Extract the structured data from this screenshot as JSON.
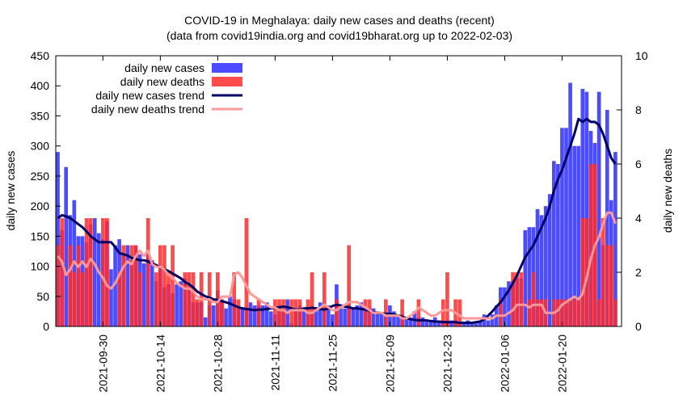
{
  "chart_data": {
    "type": "bar",
    "title": "COVID-19 in Meghalaya: daily new cases and deaths (recent)",
    "subtitle": "(data from covid19india.org and covid19bharat.org up to 2022-02-03)",
    "ylabel": "daily new cases",
    "y2label": "daily new deaths",
    "ylim": [
      0,
      450
    ],
    "y2lim": [
      0,
      10
    ],
    "yticks": [
      "0",
      "50",
      "100",
      "150",
      "200",
      "250",
      "300",
      "350",
      "400",
      "450"
    ],
    "y2ticks": [
      "0",
      "2",
      "4",
      "6",
      "8",
      "10"
    ],
    "xlim": [
      "2021-09-19",
      "2022-02-03"
    ],
    "xticks": [
      "2021-09-30",
      "2021-10-14",
      "2021-10-28",
      "2021-11-11",
      "2021-11-25",
      "2021-12-09",
      "2021-12-23",
      "2022-01-06",
      "2022-01-20"
    ],
    "legend_position": "top-left",
    "legend": [
      "daily new cases",
      "daily new deaths",
      "daily new cases trend",
      "daily new deaths trend"
    ],
    "colors": {
      "cases": "#2b2bff",
      "deaths": "#ff2b2b",
      "cases_trend": "#000066",
      "deaths_trend": "#ff9999"
    },
    "start_date": "2021-09-19",
    "cases": [
      290,
      160,
      265,
      185,
      210,
      150,
      150,
      140,
      170,
      180,
      155,
      145,
      175,
      95,
      135,
      145,
      120,
      135,
      110,
      135,
      120,
      105,
      120,
      110,
      75,
      95,
      65,
      70,
      55,
      70,
      75,
      80,
      65,
      40,
      40,
      40,
      15,
      35,
      35,
      60,
      45,
      30,
      50,
      45,
      30,
      30,
      30,
      40,
      35,
      35,
      35,
      40,
      25,
      20,
      30,
      30,
      45,
      5,
      30,
      35,
      25,
      25,
      25,
      30,
      40,
      30,
      35,
      20,
      70,
      30,
      30,
      35,
      30,
      35,
      40,
      30,
      30,
      30,
      25,
      20,
      20,
      35,
      25,
      20,
      20,
      15,
      15,
      25,
      15,
      15,
      10,
      10,
      15,
      10,
      10,
      10,
      10,
      10,
      5,
      5,
      10,
      5,
      5,
      10,
      20,
      10,
      20,
      35,
      65,
      65,
      75,
      75,
      80,
      80,
      160,
      165,
      165,
      195,
      185,
      200,
      220,
      275,
      270,
      330,
      330,
      405,
      300,
      300,
      395,
      390,
      325,
      305,
      390,
      135,
      360,
      210,
      290
    ],
    "deaths": [
      3,
      4,
      0,
      3,
      2,
      3,
      2,
      4,
      4,
      0,
      0,
      4,
      4,
      0,
      0,
      2,
      3,
      0,
      3,
      3,
      2,
      0,
      4,
      0,
      2,
      3,
      3,
      2,
      3,
      0,
      0,
      2,
      2,
      2,
      1,
      2,
      0,
      2,
      0,
      2,
      1,
      0,
      0,
      2,
      1,
      0,
      4,
      0,
      0,
      1,
      0,
      0,
      0,
      1,
      1,
      1,
      0,
      1,
      1,
      1,
      0,
      1,
      2,
      0,
      0,
      2,
      0,
      0,
      1,
      0,
      0,
      3,
      0,
      0,
      0,
      1,
      1,
      0,
      0,
      0,
      1,
      0,
      0,
      0,
      1,
      0,
      0,
      0,
      1,
      0,
      0,
      0,
      0,
      0,
      1,
      2,
      0,
      1,
      1,
      0,
      0,
      0,
      0,
      0,
      0,
      0,
      0,
      0,
      1,
      0,
      0,
      2,
      2,
      2,
      0,
      1,
      2,
      1,
      1,
      1,
      0,
      1,
      1,
      1,
      1,
      1,
      1,
      1,
      4,
      4,
      6,
      6,
      1,
      4,
      3,
      3,
      1
    ],
    "cases_trend": [
      180,
      185,
      183,
      180,
      175,
      170,
      165,
      158,
      150,
      145,
      140,
      140,
      140,
      140,
      132,
      122,
      120,
      118,
      114,
      112,
      110,
      110,
      108,
      105,
      102,
      98,
      95,
      92,
      88,
      84,
      80,
      74,
      70,
      65,
      58,
      54,
      50,
      48,
      45,
      44,
      42,
      40,
      38,
      35,
      32,
      30,
      29,
      28,
      27,
      28,
      28,
      29,
      30,
      31,
      32,
      33,
      32,
      30,
      28,
      28,
      30,
      30,
      31,
      30,
      29,
      28,
      30,
      34,
      36,
      35,
      33,
      32,
      30,
      30,
      29,
      28,
      26,
      24,
      22,
      22,
      21,
      21,
      20,
      18,
      16,
      14,
      12,
      11,
      10,
      10,
      10,
      9,
      8,
      8,
      7,
      7,
      7,
      7,
      6,
      6,
      6,
      6,
      7,
      8,
      12,
      18,
      25,
      33,
      40,
      50,
      60,
      72,
      85,
      100,
      115,
      125,
      135,
      150,
      165,
      180,
      200,
      225,
      245,
      260,
      280,
      300,
      320,
      345,
      340,
      345,
      340,
      340,
      335,
      320,
      300,
      280,
      270
    ],
    "deaths_trend": [
      2.6,
      2.4,
      1.9,
      2.1,
      2.4,
      2.2,
      2.4,
      2.2,
      2.5,
      2.3,
      2.0,
      1.8,
      1.5,
      1.4,
      1.6,
      1.9,
      2.2,
      2.4,
      2.3,
      2.6,
      2.8,
      2.6,
      2.8,
      2.3,
      2.2,
      2.2,
      2.1,
      1.9,
      1.8,
      1.6,
      1.5,
      1.4,
      1.4,
      1.3,
      1.1,
      1.0,
      1.0,
      1.0,
      0.9,
      0.9,
      1.1,
      1.1,
      1.1,
      1.9,
      2.0,
      1.8,
      1.5,
      1.2,
      1.1,
      1.0,
      0.9,
      0.8,
      0.7,
      0.7,
      0.6,
      0.6,
      0.5,
      0.6,
      0.6,
      0.6,
      0.6,
      0.5,
      0.5,
      0.6,
      0.7,
      0.8,
      0.7,
      0.6,
      0.6,
      0.7,
      0.8,
      0.9,
      0.9,
      0.9,
      0.8,
      0.7,
      0.6,
      0.5,
      0.5,
      0.5,
      0.4,
      0.4,
      0.4,
      0.4,
      0.3,
      0.3,
      0.4,
      0.5,
      0.7,
      0.6,
      0.5,
      0.4,
      0.4,
      0.5,
      0.6,
      0.6,
      0.6,
      0.5,
      0.4,
      0.3,
      0.3,
      0.3,
      0.3,
      0.3,
      0.3,
      0.3,
      0.3,
      0.4,
      0.4,
      0.4,
      0.5,
      0.6,
      0.8,
      0.8,
      0.8,
      0.7,
      0.8,
      0.8,
      0.8,
      0.5,
      0.5,
      0.5,
      0.6,
      0.8,
      0.9,
      1.0,
      1.1,
      1.0,
      1.2,
      1.8,
      2.5,
      3.0,
      3.3,
      3.8,
      4.2,
      4.2,
      3.8
    ]
  }
}
